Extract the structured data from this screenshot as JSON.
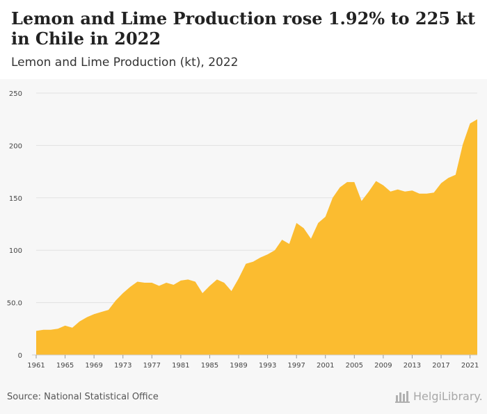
{
  "header": {
    "title": "Lemon and Lime Production rose 1.92% to 225 kt in Chile in 2022",
    "subtitle": "Lemon and Lime Production (kt), 2022"
  },
  "footer": {
    "source": "Source: National Statistical Office",
    "logo_text": "HelgiLibrary."
  },
  "colors": {
    "area_fill": "#fbbc30",
    "grid": "#e2e2e2",
    "axis_text": "#444444"
  },
  "chart_data": {
    "type": "area",
    "title": "Lemon and Lime Production (kt), 2022",
    "xlabel": "",
    "ylabel": "",
    "ylim": [
      0,
      250
    ],
    "yticks": [
      "0",
      "50.0",
      "100",
      "150",
      "200",
      "250"
    ],
    "xticks": [
      "1961",
      "1965",
      "1969",
      "1973",
      "1977",
      "1981",
      "1985",
      "1989",
      "1993",
      "1997",
      "2001",
      "2005",
      "2009",
      "2013",
      "2017",
      "2021"
    ],
    "grid": true,
    "x": [
      1961,
      1962,
      1963,
      1964,
      1965,
      1966,
      1967,
      1968,
      1969,
      1970,
      1971,
      1972,
      1973,
      1974,
      1975,
      1976,
      1977,
      1978,
      1979,
      1980,
      1981,
      1982,
      1983,
      1984,
      1985,
      1986,
      1987,
      1988,
      1989,
      1990,
      1991,
      1992,
      1993,
      1994,
      1995,
      1996,
      1997,
      1998,
      1999,
      2000,
      2001,
      2002,
      2003,
      2004,
      2005,
      2006,
      2007,
      2008,
      2009,
      2010,
      2011,
      2012,
      2013,
      2014,
      2015,
      2016,
      2017,
      2018,
      2019,
      2020,
      2021,
      2022
    ],
    "values": [
      23,
      24,
      24,
      25,
      28,
      26,
      32,
      36,
      39,
      41,
      43,
      52,
      59,
      65,
      70,
      69,
      69,
      66,
      69,
      67,
      71,
      72,
      70,
      59,
      66,
      72,
      69,
      61,
      73,
      87,
      89,
      93,
      96,
      100,
      110,
      106,
      126,
      121,
      111,
      126,
      132,
      150,
      160,
      165,
      165,
      147,
      156,
      166,
      162,
      156,
      158,
      156,
      157,
      154,
      154,
      155,
      164,
      169,
      172,
      201,
      221,
      225
    ]
  }
}
